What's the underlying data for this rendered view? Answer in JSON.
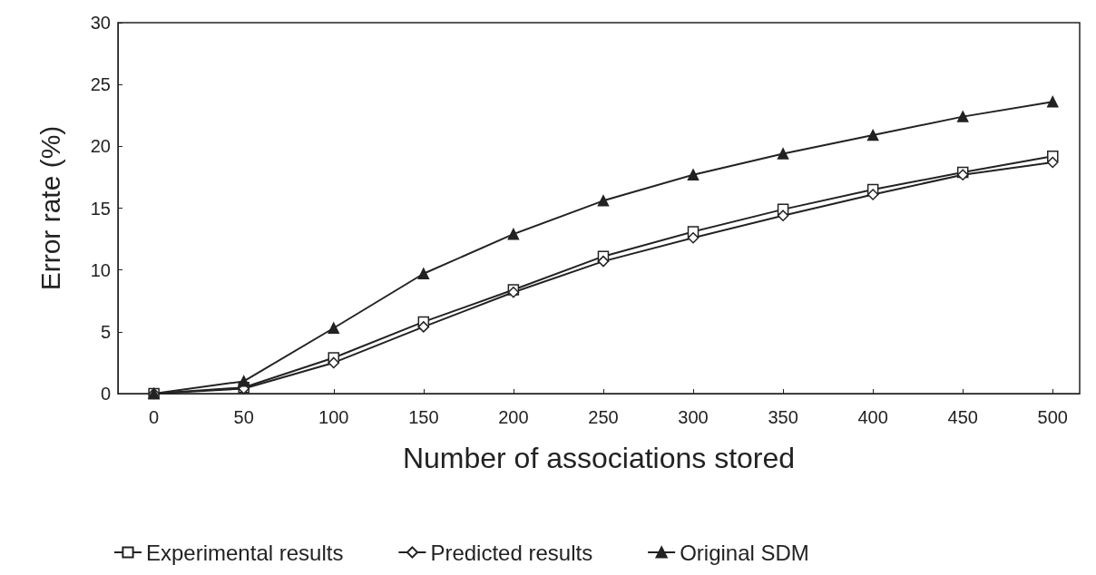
{
  "chart_data": {
    "type": "line",
    "xlabel": "Number of associations stored",
    "ylabel": "Error rate (%)",
    "x": [
      0,
      50,
      100,
      150,
      200,
      250,
      300,
      350,
      400,
      450,
      500
    ],
    "series": [
      {
        "name": "Experimental results",
        "color": "#222222",
        "marker": "square",
        "values": [
          0,
          0.5,
          2.9,
          5.8,
          8.4,
          11.1,
          13.1,
          14.9,
          16.5,
          17.9,
          19.2
        ]
      },
      {
        "name": "Predicted results",
        "color": "#222222",
        "marker": "diamond",
        "values": [
          0,
          0.4,
          2.5,
          5.4,
          8.2,
          10.7,
          12.6,
          14.4,
          16.1,
          17.7,
          18.7
        ]
      },
      {
        "name": "Original SDM",
        "color": "#222222",
        "marker": "triangle",
        "values": [
          0,
          1.0,
          5.3,
          9.7,
          12.9,
          15.6,
          17.7,
          19.4,
          20.9,
          22.4,
          23.6
        ]
      }
    ],
    "xlim": [
      -20,
      515
    ],
    "xticks": [
      0,
      50,
      100,
      150,
      200,
      250,
      300,
      350,
      400,
      450,
      500
    ],
    "ylim": [
      0,
      30
    ],
    "yticks": [
      0,
      5,
      10,
      15,
      20,
      25,
      30
    ],
    "grid": false,
    "legend": "bottom left",
    "line_style": "solid"
  }
}
